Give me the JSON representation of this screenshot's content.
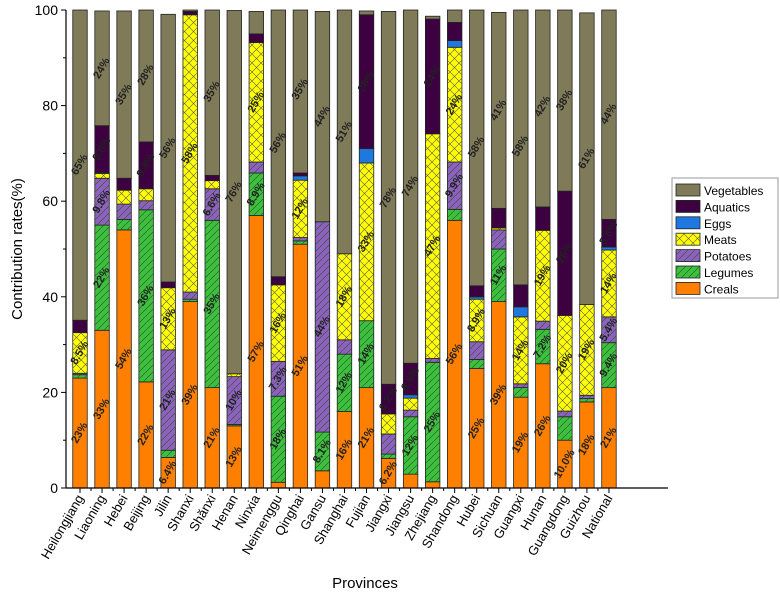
{
  "chart_data": {
    "type": "bar",
    "stacked": true,
    "title": "",
    "xlabel": "Provinces",
    "ylabel": "Contribution rates(%)",
    "ylim": [
      0,
      100
    ],
    "yticks": [
      0,
      20,
      40,
      60,
      80,
      100
    ],
    "legend_position": "right",
    "categories": [
      "Heilongjiang",
      "Liaoning",
      "Hebei",
      "Beijing",
      "Jilin",
      "Shanxi",
      "Shănxi",
      "Henan",
      "Ninxia",
      "Neimenggu",
      "Qinghai",
      "Gansu",
      "Shanghai",
      "Fujian",
      "Jiangxi",
      "Jiangsu",
      "Zhejiang",
      "Shandong",
      "Hubei",
      "Sichuan",
      "Guangxi",
      "Hunan",
      "Guangdong",
      "Guizhou",
      "National"
    ],
    "series": [
      {
        "name": "Creals",
        "color": "#ff8000",
        "pattern": "none",
        "values": [
          23,
          33,
          54,
          22.2,
          6.4,
          39,
          21,
          13,
          57,
          1.2,
          51,
          3.6,
          16,
          21,
          6.2,
          2.9,
          1.3,
          56,
          25,
          39,
          19,
          26,
          10,
          18,
          21
        ],
        "labels": [
          "23%",
          "33%",
          "54%",
          "22%",
          "6.4%",
          "39%",
          "21%",
          "13%",
          "57%",
          "",
          "51%",
          "",
          "16%",
          "21%",
          "6.2%",
          "",
          "",
          "56%",
          "25%",
          "39%",
          "19%",
          "26%",
          "10.0%",
          "18%",
          "21%"
        ]
      },
      {
        "name": "Legumes",
        "color": "#3fbf3f",
        "pattern": "diag",
        "values": [
          0.7,
          22,
          2.2,
          36,
          1.5,
          0.5,
          35,
          0.3,
          8.9,
          18,
          0.7,
          8.1,
          12,
          14,
          0.9,
          12,
          25,
          2.3,
          1.9,
          11,
          2,
          7.2,
          4.9,
          0.7,
          9.4
        ],
        "labels": [
          "",
          "22%",
          "",
          "36%",
          "",
          "",
          "35%",
          "",
          "8.9%",
          "18%",
          "",
          "8.1%",
          "12%",
          "14%",
          "",
          "12%",
          "25%",
          "",
          "",
          "11%",
          "",
          "7.2%",
          "",
          "",
          "9.4%"
        ]
      },
      {
        "name": "Potatoes",
        "color": "#9060c0",
        "pattern": "diag",
        "values": [
          0.3,
          9.8,
          3.2,
          1.9,
          21,
          1.5,
          6.6,
          10,
          2.3,
          7.3,
          0.7,
          44,
          3,
          0,
          4.2,
          1.4,
          0.8,
          9.9,
          3.7,
          4,
          0.8,
          1.7,
          1.2,
          0.7,
          5.4
        ],
        "labels": [
          "",
          "9.8%",
          "",
          "",
          "21%",
          "",
          "6.6%",
          "10%",
          "",
          "7.3%",
          "",
          "44%",
          "",
          "",
          "",
          "",
          "",
          "9.9%",
          "",
          "",
          "",
          "",
          "",
          "",
          "5.4%"
        ]
      },
      {
        "name": "Meats",
        "color": "#ffff00",
        "pattern": "cross",
        "values": [
          8.5,
          1,
          2.9,
          2.5,
          13,
          58,
          1.7,
          0.6,
          25,
          16,
          12,
          0,
          18,
          33,
          4.2,
          2.5,
          47,
          24,
          8.9,
          0.4,
          14,
          19,
          20,
          19,
          14
        ],
        "labels": [
          "8.5%",
          "",
          "",
          "",
          "13%",
          "58%",
          "",
          "",
          "25%",
          "16%",
          "12%",
          "",
          "18%",
          "33%",
          "",
          "",
          "47%",
          "24%",
          "8.9%",
          "",
          "14%",
          "19%",
          "20%",
          "19%",
          "14%"
        ]
      },
      {
        "name": "Eggs",
        "color": "#1e78e0",
        "pattern": "none",
        "values": [
          0,
          0.2,
          0,
          0,
          0,
          0,
          0,
          0,
          0,
          0,
          0.9,
          0,
          0,
          3,
          0,
          0.7,
          0,
          1.4,
          0.5,
          0,
          2.1,
          0,
          0,
          0,
          0.6
        ],
        "labels": [
          "",
          "",
          "",
          "",
          "",
          "",
          "",
          "",
          "",
          "",
          "",
          "",
          "",
          "",
          "",
          "",
          "",
          "",
          "",
          "",
          "",
          "",
          "",
          "",
          ""
        ]
      },
      {
        "name": "Aquatics",
        "color": "#3d0040",
        "pattern": "none",
        "values": [
          2.6,
          9.8,
          2.5,
          9.8,
          1.2,
          0.7,
          1.1,
          0,
          1.8,
          1.7,
          0.6,
          0,
          0,
          28,
          6.2,
          6.6,
          24,
          3.8,
          2.3,
          4.1,
          4.6,
          4.9,
          26,
          0,
          5.8
        ],
        "labels": [
          "",
          "9.8%",
          "",
          "9.8%",
          "",
          "",
          "",
          "",
          "",
          "",
          "",
          "",
          "",
          "28%",
          "6.2%",
          "6.6%",
          "24%",
          "",
          "",
          "",
          "",
          "",
          "26%",
          "",
          "5.8%"
        ]
      },
      {
        "name": "Vegetables",
        "color": "#7f7b59",
        "pattern": "none",
        "values": [
          65,
          24,
          35,
          28,
          56,
          0.3,
          35,
          76,
          4.7,
          56,
          35,
          44,
          51,
          0.8,
          78,
          74,
          0.6,
          2.8,
          58,
          41,
          58,
          42,
          38,
          61,
          44
        ],
        "labels": [
          "65%",
          "24%",
          "35%",
          "28%",
          "56%",
          "",
          "35%",
          "76%",
          "",
          "56%",
          "35%",
          "44%",
          "51%",
          "",
          "78%",
          "74%",
          "",
          "",
          "58%",
          "41%",
          "58%",
          "42%",
          "38%",
          "61%",
          "44%"
        ]
      }
    ]
  }
}
